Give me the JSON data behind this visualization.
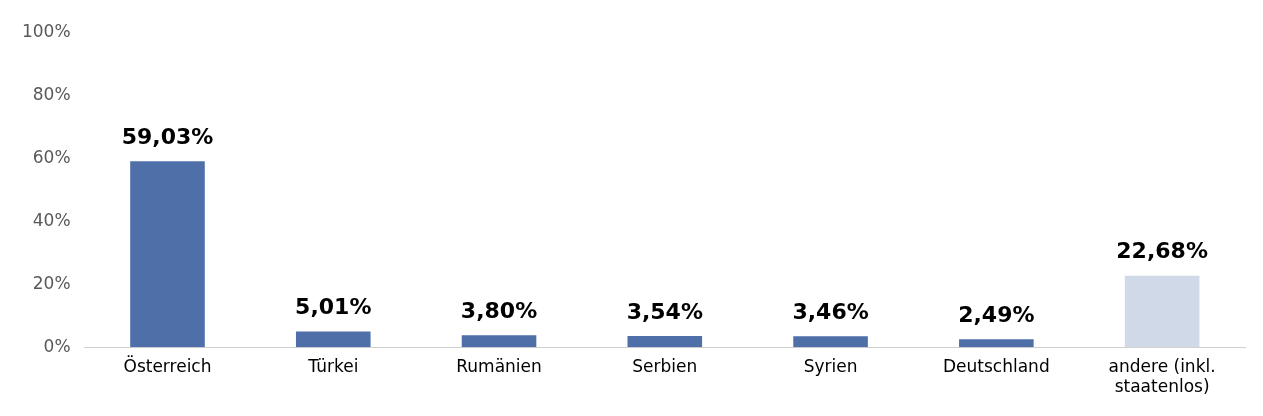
{
  "chart_data": {
    "type": "bar",
    "categories": [
      "Österreich",
      "Türkei",
      "Rumänien",
      "Serbien",
      "Syrien",
      "Deutschland",
      "andere (inkl. staatenlos)"
    ],
    "values": [
      59.03,
      5.01,
      3.8,
      3.54,
      3.46,
      2.49,
      22.68
    ],
    "colors": [
      "#4e6fa8",
      "#4e6fa8",
      "#4e6fa8",
      "#4e6fa8",
      "#4e6fa8",
      "#4e6fa8",
      "#cfd9e8"
    ],
    "value_labels": [
      "59,03%",
      "5,01%",
      "3,80%",
      "3,54%",
      "3,46%",
      "2,49%",
      "22,68%"
    ],
    "ylim": [
      0,
      100
    ],
    "yticks": [
      {
        "value": 0,
        "label": "0%"
      },
      {
        "value": 20,
        "label": "20%"
      },
      {
        "value": 40,
        "label": "40%"
      },
      {
        "value": 60,
        "label": "60%"
      },
      {
        "value": 80,
        "label": "80%"
      },
      {
        "value": 100,
        "label": "100%"
      }
    ],
    "grid": false,
    "legend": false
  }
}
